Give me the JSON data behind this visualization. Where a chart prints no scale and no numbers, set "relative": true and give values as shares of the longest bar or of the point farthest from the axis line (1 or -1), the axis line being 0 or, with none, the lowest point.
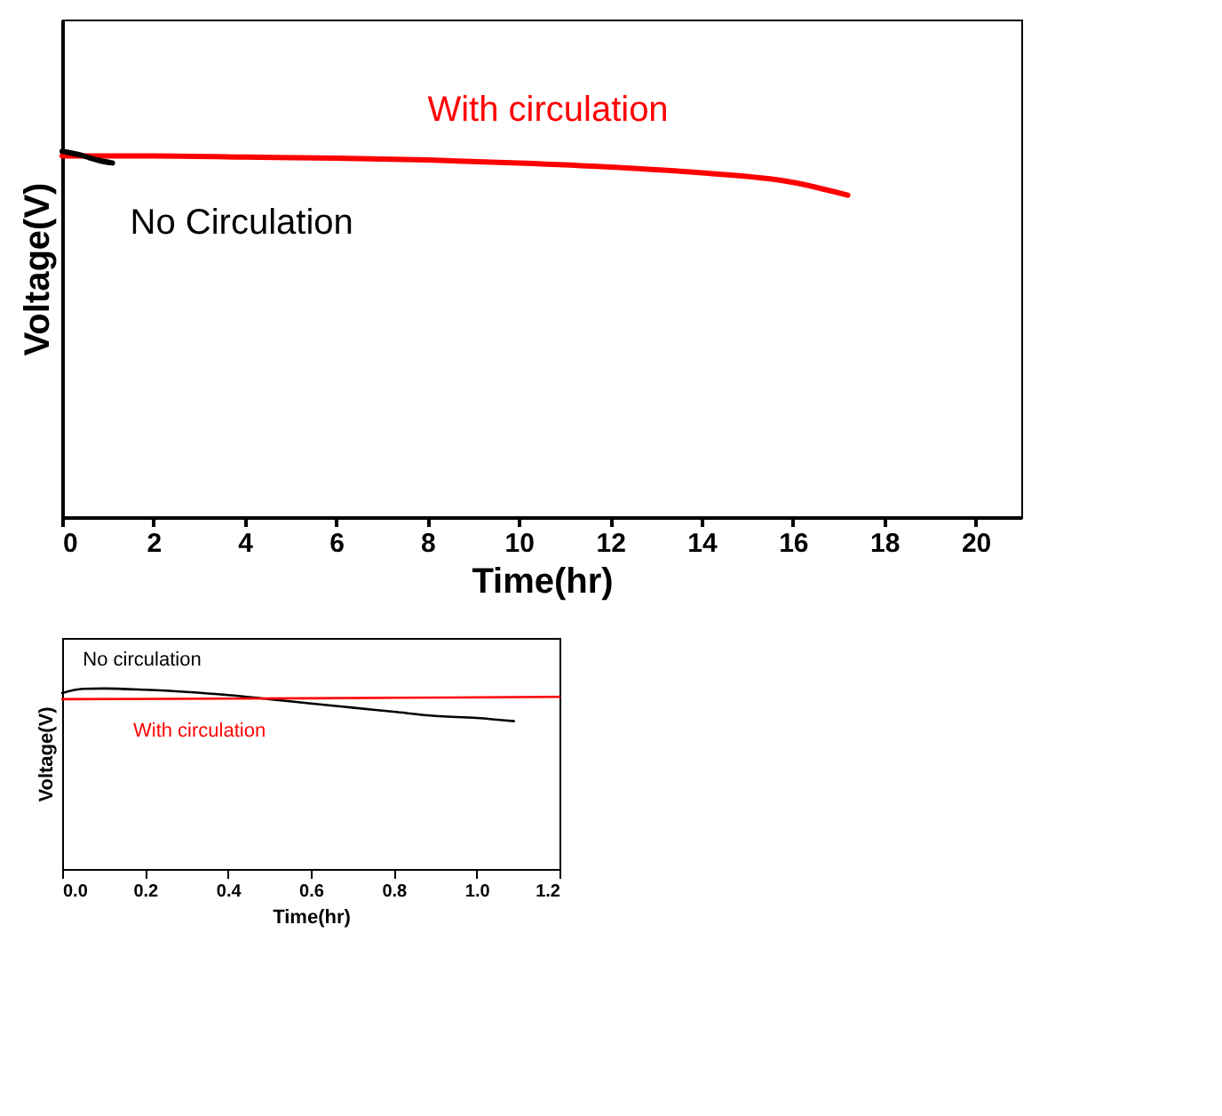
{
  "chart_data": [
    {
      "type": "line",
      "xlabel": "Time(hr)",
      "ylabel": "Voltage(V)",
      "relative": true,
      "xlim": [
        0,
        21
      ],
      "xticks": [
        0,
        2,
        4,
        6,
        8,
        10,
        12,
        14,
        16,
        18,
        20
      ],
      "tick_labels": "x",
      "grid": false,
      "line_style": "solid",
      "series": [
        {
          "name": "With circulation",
          "color": "#ff0000",
          "x": [
            0,
            2,
            4,
            6,
            8,
            10,
            12,
            14,
            16,
            17.2
          ],
          "values": [
            0.987,
            0.987,
            0.984,
            0.981,
            0.976,
            0.968,
            0.957,
            0.941,
            0.915,
            0.88
          ]
        },
        {
          "name": "No Circulation",
          "color": "#000000",
          "x": [
            0,
            0.2,
            0.4,
            0.6,
            0.8,
            1.1
          ],
          "values": [
            1,
            0.995,
            0.99,
            0.982,
            0.975,
            0.968
          ]
        }
      ]
    },
    {
      "type": "line",
      "xlabel": "Time(hr)",
      "ylabel": "Voltage(V)",
      "relative": true,
      "xlim": [
        0,
        1.2
      ],
      "xticks": [
        {
          "value": 0,
          "label": "0.0"
        },
        {
          "value": 0.2,
          "label": "0.2"
        },
        {
          "value": 0.4,
          "label": "0.4"
        },
        {
          "value": 0.6,
          "label": "0.6"
        },
        {
          "value": 0.8,
          "label": "0.8"
        },
        {
          "value": 1.0,
          "label": "1.0"
        },
        {
          "value": 1.2,
          "label": "1.2"
        }
      ],
      "tick_labels": "x",
      "grid": false,
      "line_style": "solid",
      "series": [
        {
          "name": "No circulation",
          "color": "#000000",
          "x": [
            0,
            0.05,
            0.1,
            0.2,
            0.3,
            0.4,
            0.5,
            0.6,
            0.7,
            0.8,
            0.9,
            1.0,
            1.09
          ],
          "values": [
            0.975,
            0.998,
            1,
            0.993,
            0.981,
            0.964,
            0.941,
            0.917,
            0.894,
            0.871,
            0.848,
            0.837,
            0.819
          ]
        },
        {
          "name": "With circulation",
          "color": "#ff0000",
          "x": [
            0,
            0.6,
            1.2
          ],
          "values": [
            0.941,
            0.946,
            0.954
          ]
        }
      ]
    }
  ]
}
